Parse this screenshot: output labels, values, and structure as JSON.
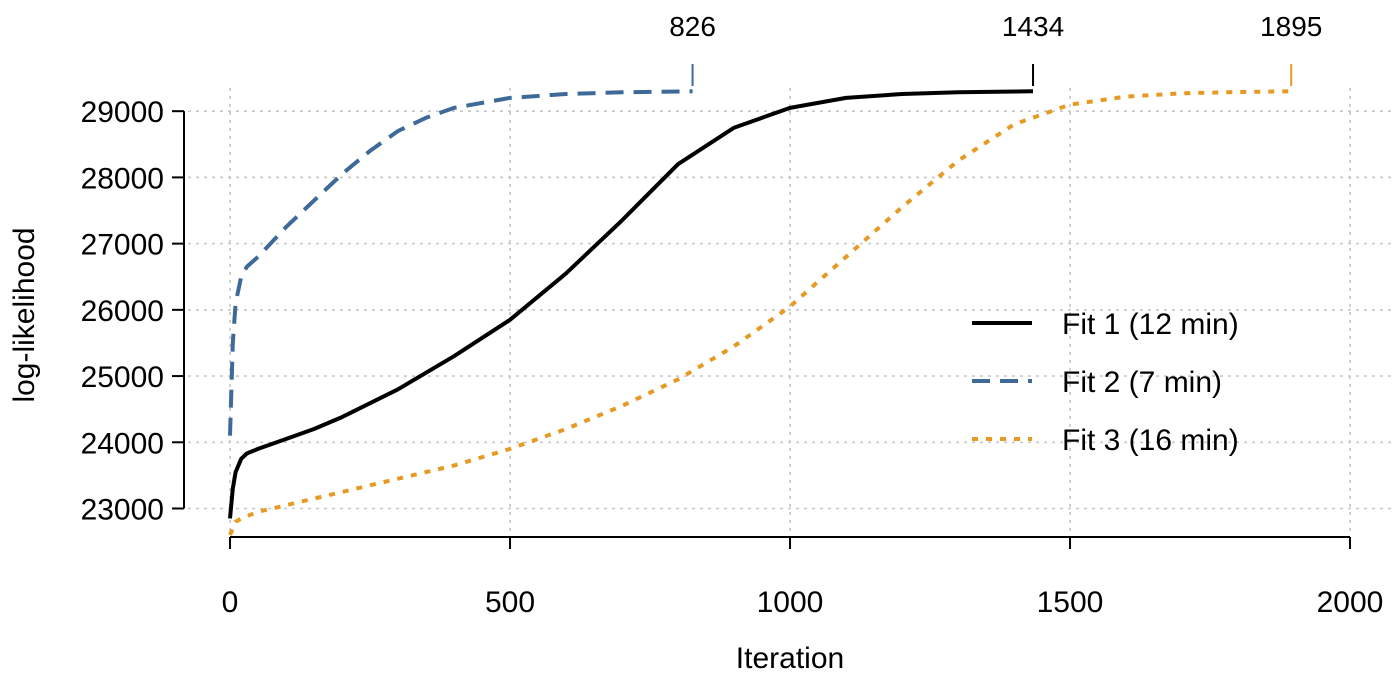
{
  "chart_data": {
    "type": "line",
    "xlabel": "Iteration",
    "ylabel": "log-likelihood",
    "xlim": [
      0,
      2000
    ],
    "ylim": [
      22600,
      29350
    ],
    "x_ticks": [
      0,
      500,
      1000,
      1500,
      2000
    ],
    "x_tick_labels": [
      "0",
      "500",
      "1000",
      "1500",
      "2000"
    ],
    "y_ticks": [
      23000,
      24000,
      25000,
      26000,
      27000,
      28000,
      29000
    ],
    "y_tick_labels": [
      "23000",
      "24000",
      "25000",
      "26000",
      "27000",
      "28000",
      "29000"
    ],
    "grid": true,
    "legend_position": "right",
    "series": [
      {
        "name": "Fit 1 (12 min)",
        "color": "#000000",
        "line_style": "solid",
        "end_iteration": 1434,
        "end_label": "1434",
        "x": [
          0,
          5,
          10,
          20,
          30,
          50,
          100,
          150,
          200,
          300,
          400,
          500,
          600,
          700,
          800,
          900,
          1000,
          1100,
          1200,
          1300,
          1434
        ],
        "y": [
          22850,
          23300,
          23550,
          23750,
          23830,
          23900,
          24050,
          24200,
          24380,
          24800,
          25300,
          25850,
          26550,
          27350,
          28200,
          28750,
          29050,
          29200,
          29260,
          29285,
          29300
        ]
      },
      {
        "name": "Fit 2 (7 min)",
        "color": "#3d6a99",
        "line_style": "dashed",
        "end_iteration": 826,
        "end_label": "826",
        "x": [
          0,
          5,
          10,
          20,
          30,
          50,
          100,
          150,
          200,
          250,
          300,
          350,
          400,
          500,
          600,
          700,
          826
        ],
        "y": [
          24100,
          25500,
          26100,
          26500,
          26650,
          26800,
          27250,
          27650,
          28050,
          28400,
          28700,
          28900,
          29050,
          29200,
          29260,
          29285,
          29300
        ]
      },
      {
        "name": "Fit 3 (16 min)",
        "color": "#e69a24",
        "line_style": "dotted",
        "end_iteration": 1895,
        "end_label": "1895",
        "x": [
          0,
          10,
          20,
          50,
          100,
          200,
          300,
          400,
          500,
          600,
          700,
          800,
          900,
          1000,
          1100,
          1200,
          1300,
          1400,
          1500,
          1600,
          1700,
          1800,
          1895
        ],
        "y": [
          22600,
          22800,
          22850,
          22950,
          23050,
          23250,
          23450,
          23650,
          23900,
          24200,
          24550,
          24950,
          25450,
          26050,
          26800,
          27550,
          28250,
          28800,
          29100,
          29220,
          29270,
          29290,
          29300
        ]
      }
    ]
  }
}
